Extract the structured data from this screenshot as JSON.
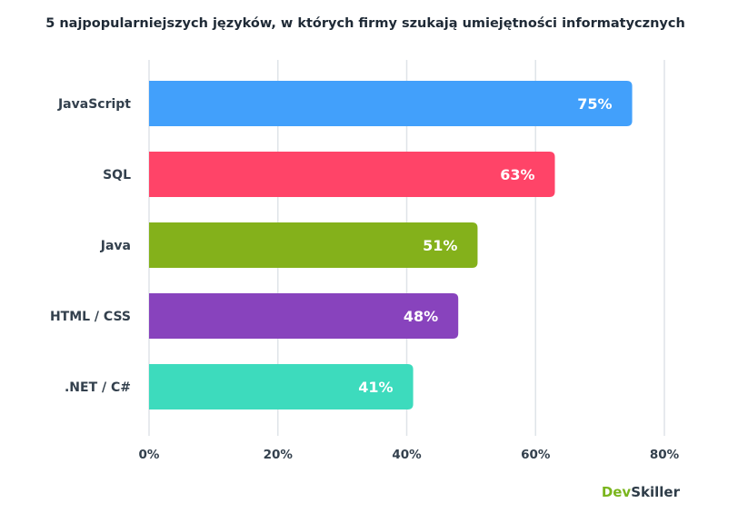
{
  "chart_data": {
    "type": "bar",
    "orientation": "horizontal",
    "title": "5 najpopularniejszych języków, w których firmy szukają umiejętności informatycznych",
    "categories": [
      "JavaScript",
      "SQL",
      "Java",
      "HTML / CSS",
      ".NET / C#"
    ],
    "values": [
      75,
      63,
      51,
      48,
      41
    ],
    "value_labels": [
      "75%",
      "63%",
      "51%",
      "48%",
      "41%"
    ],
    "bar_colors": [
      "#42a0fb",
      "#ff4468",
      "#84b11b",
      "#8843bd",
      "#3ddbbd"
    ],
    "xlim": [
      0,
      80
    ],
    "x_ticks": [
      0,
      20,
      40,
      60,
      80
    ],
    "x_tick_labels": [
      "0%",
      "20%",
      "40%",
      "60%",
      "80%"
    ],
    "xlabel": "",
    "ylabel": "",
    "grid": true
  },
  "logo": {
    "dev": "Dev",
    "skiller": "Skiller"
  }
}
